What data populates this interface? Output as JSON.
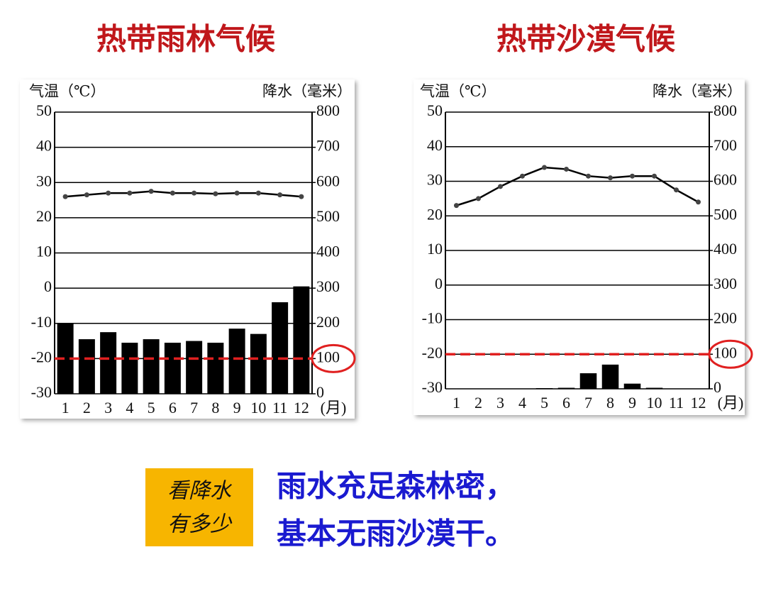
{
  "chart_data": [
    {
      "type": "combo",
      "title": "热带雨林气候",
      "y_label": "气温（℃）",
      "y2_label": "降水（毫米）",
      "x_label": "(月)",
      "categories": [
        "1",
        "2",
        "3",
        "4",
        "5",
        "6",
        "7",
        "8",
        "9",
        "10",
        "11",
        "12"
      ],
      "ylim": [
        -30,
        50
      ],
      "yticks": [
        -30,
        -20,
        -10,
        0,
        10,
        20,
        30,
        40,
        50
      ],
      "y2lim": [
        0,
        800
      ],
      "y2ticks": [
        0,
        100,
        200,
        300,
        400,
        500,
        600,
        700,
        800
      ],
      "grid": true,
      "series": [
        {
          "name": "降水",
          "kind": "bar",
          "axis": "y2",
          "color": "#000000",
          "values": [
            200,
            155,
            175,
            145,
            155,
            145,
            150,
            145,
            185,
            170,
            260,
            305
          ]
        },
        {
          "name": "气温",
          "kind": "line",
          "axis": "y",
          "color": "#000000",
          "values": [
            26,
            26.5,
            27,
            27,
            27.5,
            27,
            27,
            26.8,
            27,
            27,
            26.5,
            26
          ]
        }
      ],
      "reference_line": {
        "value": 100,
        "axis": "y2",
        "color": "#e02020"
      }
    },
    {
      "type": "combo",
      "title": "热带沙漠气候",
      "y_label": "气温（℃）",
      "y2_label": "降水（毫米）",
      "x_label": "(月)",
      "categories": [
        "1",
        "2",
        "3",
        "4",
        "5",
        "6",
        "7",
        "8",
        "9",
        "10",
        "11",
        "12"
      ],
      "ylim": [
        -30,
        50
      ],
      "yticks": [
        -30,
        -20,
        -10,
        0,
        10,
        20,
        30,
        40,
        50
      ],
      "y2lim": [
        0,
        800
      ],
      "y2ticks": [
        0,
        100,
        200,
        300,
        400,
        500,
        600,
        700,
        800
      ],
      "grid": true,
      "series": [
        {
          "name": "降水",
          "kind": "bar",
          "axis": "y2",
          "color": "#000000",
          "values": [
            0,
            0,
            0,
            0,
            2,
            3,
            45,
            70,
            15,
            3,
            0,
            0
          ]
        },
        {
          "name": "气温",
          "kind": "line",
          "axis": "y",
          "color": "#000000",
          "values": [
            23,
            25,
            28.5,
            31.5,
            34,
            33.5,
            31.5,
            31,
            31.5,
            31.5,
            27.5,
            24
          ]
        }
      ],
      "reference_line": {
        "value": 100,
        "axis": "y2",
        "color": "#e02020"
      }
    }
  ],
  "note": {
    "tag": [
      "看降水",
      "有多少"
    ],
    "lines": [
      "雨水充足森林密，",
      "基本无雨沙漠干。"
    ]
  }
}
